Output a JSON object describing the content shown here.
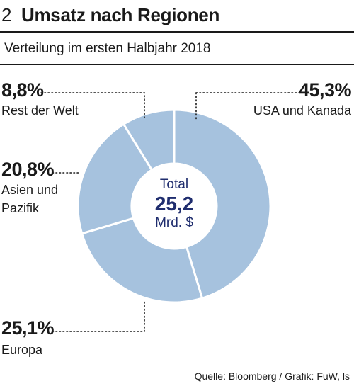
{
  "header": {
    "number": "2",
    "title": "Umsatz nach Regionen",
    "subtitle": "Verteilung im ersten Halbjahr 2018"
  },
  "center": {
    "label": "Total",
    "value": "25,2",
    "unit": "Mrd. $"
  },
  "labels": {
    "usa_pct": "45,3%",
    "usa_name": "USA und Kanada",
    "rest_pct": "8,8%",
    "rest_name": "Rest der Welt",
    "asia_pct": "20,8%",
    "asia_name_1": "Asien und",
    "asia_name_2": "Pazifik",
    "europe_pct": "25,1%",
    "europe_name": "Europa"
  },
  "source": "Quelle: Bloomberg / Grafik: FuW, ls",
  "colors": {
    "slice": "#a6c2de",
    "separator": "#ffffff",
    "center_text": "#1f2d6e",
    "leader": "#1a1a1a"
  },
  "chart_data": {
    "type": "pie",
    "title": "Umsatz nach Regionen",
    "subtitle": "Verteilung im ersten Halbjahr 2018",
    "total": 25.2,
    "total_unit": "Mrd. $",
    "start_angle_deg": 0,
    "direction": "clockwise",
    "slices": [
      {
        "label": "USA und Kanada",
        "value": 45.3
      },
      {
        "label": "Europa",
        "value": 25.1
      },
      {
        "label": "Asien und Pazifik",
        "value": 20.8
      },
      {
        "label": "Rest der Welt",
        "value": 8.8
      }
    ]
  }
}
